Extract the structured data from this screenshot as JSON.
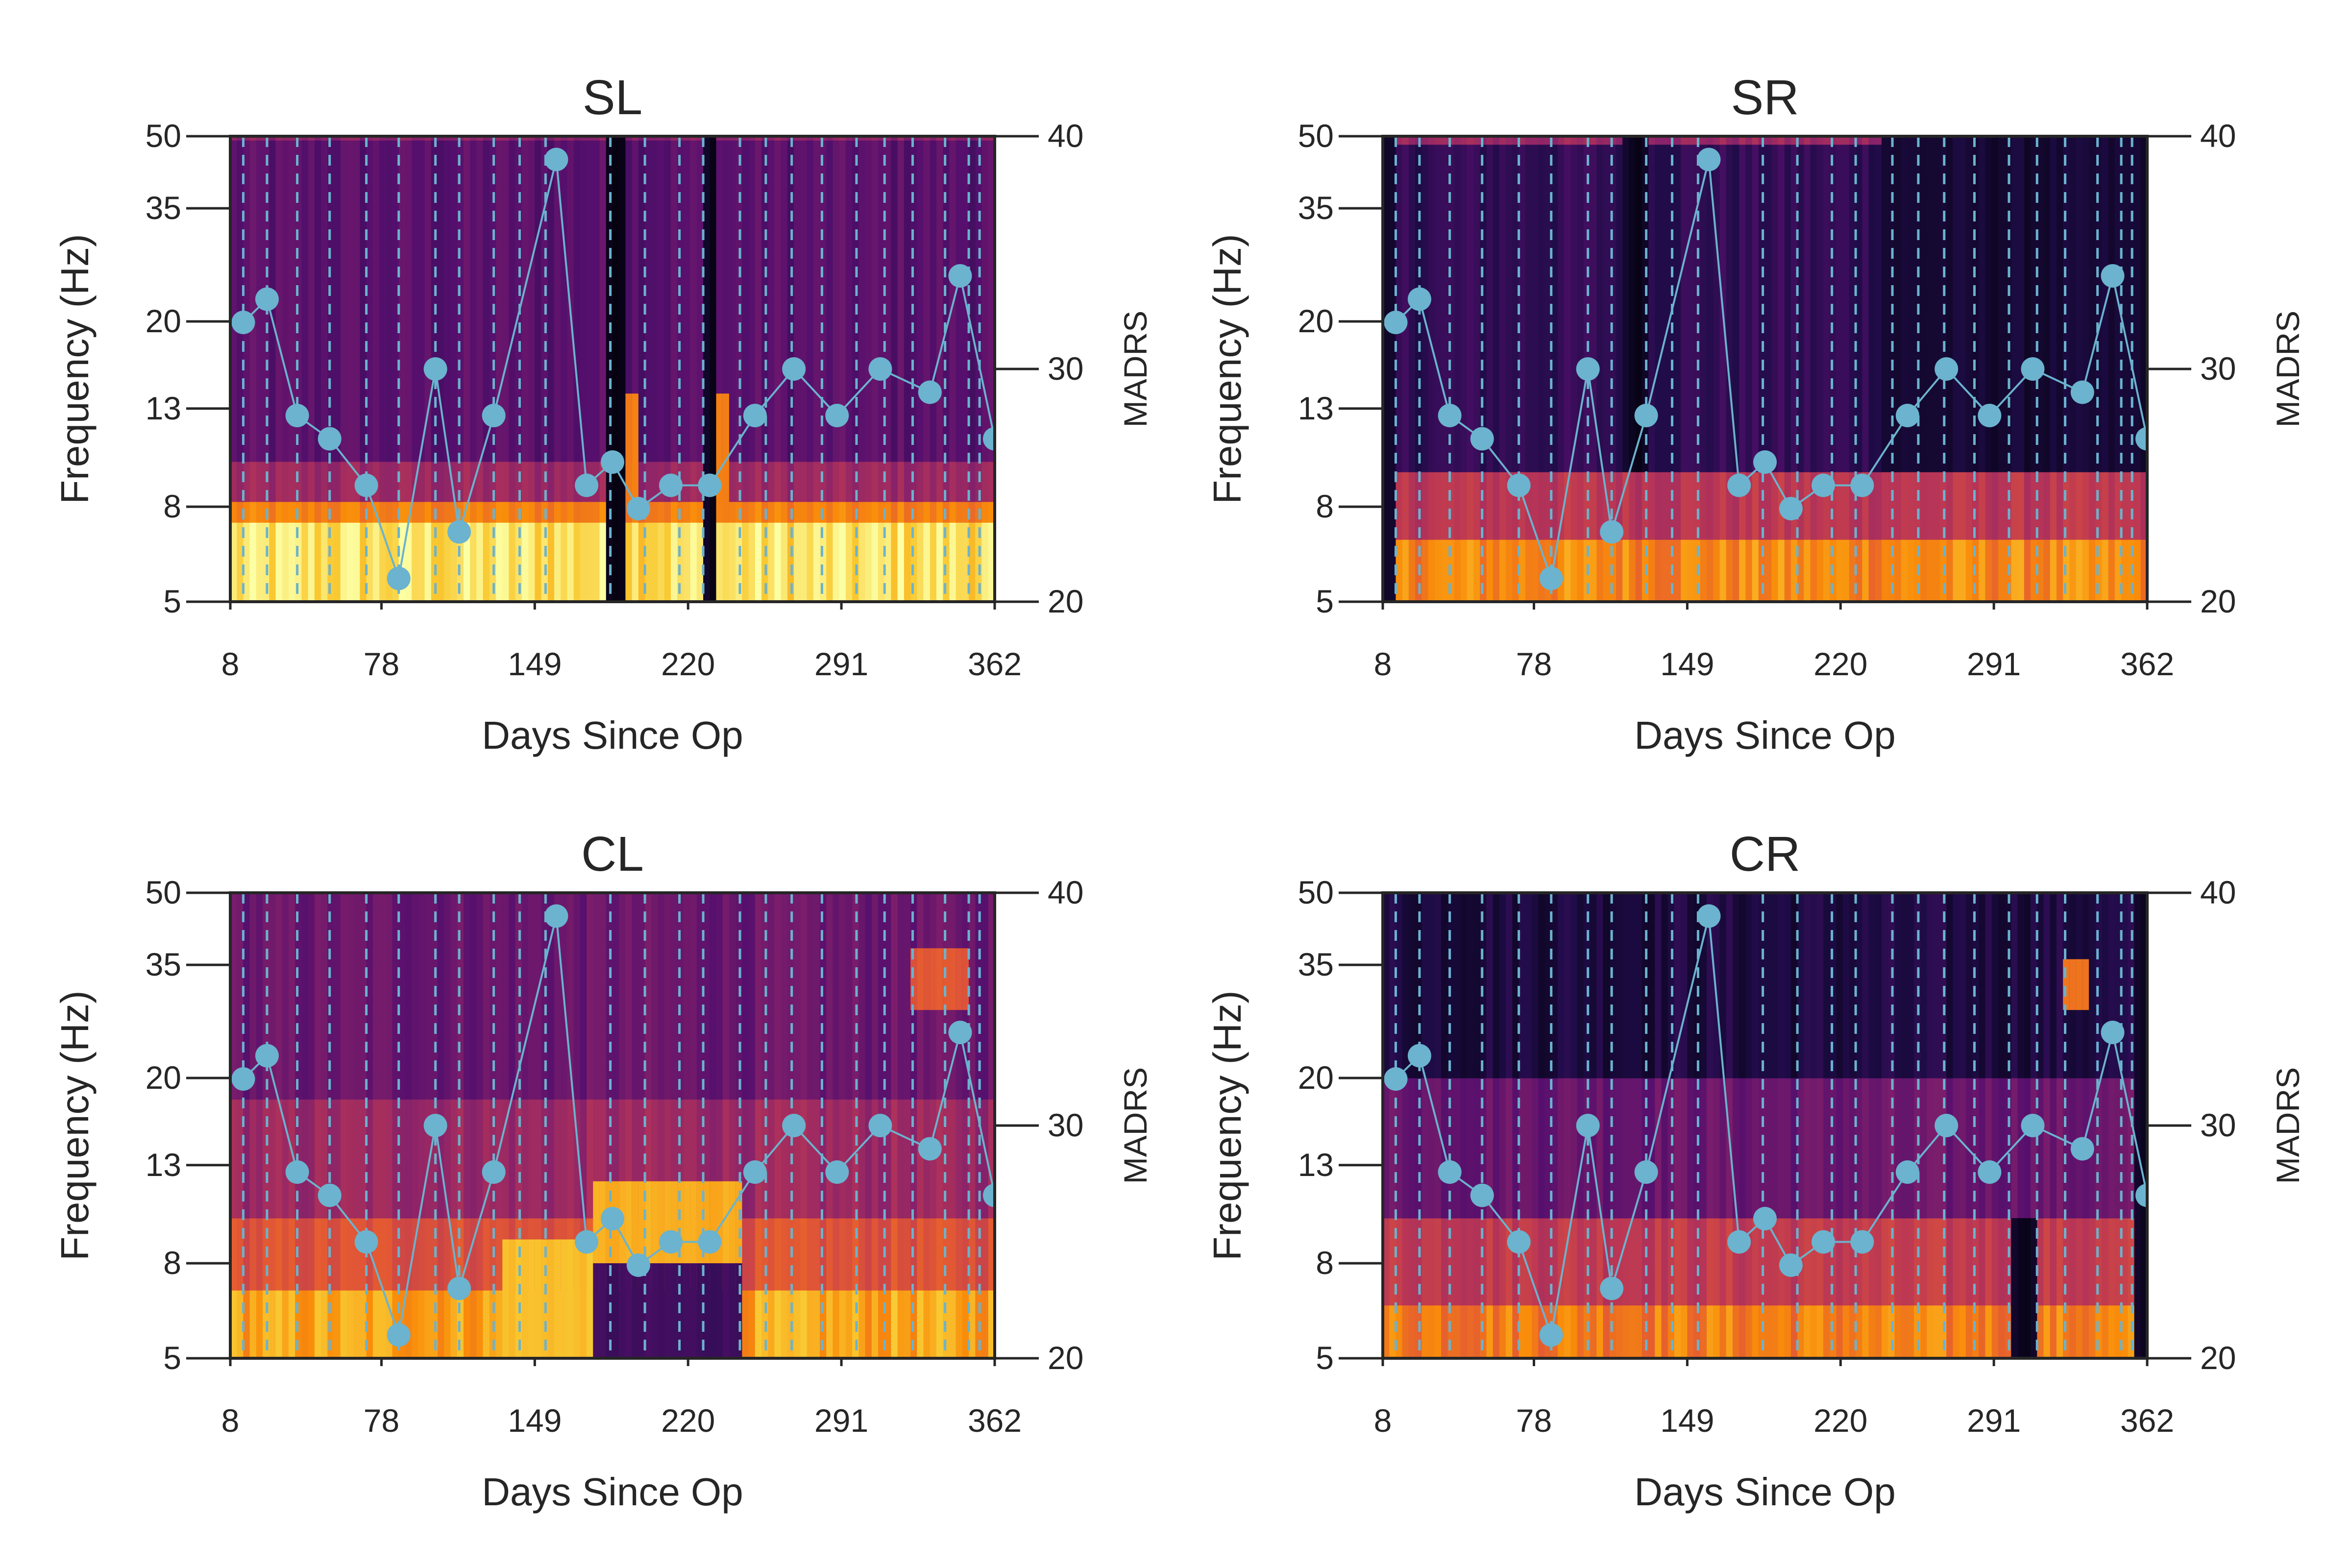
{
  "chart_data": [
    {
      "type": "heatmap",
      "title": "SL",
      "xlabel": "Days Since Op",
      "ylabel": "Frequency (Hz)",
      "y2label": "MADRS",
      "xlim": [
        8,
        362
      ],
      "xticks": [
        8,
        78,
        149,
        220,
        291,
        362
      ],
      "ylim": [
        5,
        50
      ],
      "yscale": "log",
      "yticks": [
        5,
        8,
        13,
        20,
        35,
        50
      ],
      "y2lim": [
        20,
        40
      ],
      "y2ticks": [
        20,
        30,
        40
      ],
      "colormap": "inferno",
      "bands": [
        {
          "freq": [
            5,
            7.4
          ],
          "intensity": 0.93
        },
        {
          "freq": [
            7.4,
            8.2
          ],
          "intensity": 0.72
        },
        {
          "freq": [
            8.2,
            10
          ],
          "intensity": 0.42
        },
        {
          "freq": [
            10,
            49
          ],
          "intensity": 0.26
        },
        {
          "freq": [
            49,
            50
          ],
          "intensity": 0.38
        }
      ],
      "anomalies": [
        {
          "x": [
            183,
            190
          ],
          "freq": [
            5,
            50
          ],
          "intensity": 0.05
        },
        {
          "x": [
            190,
            197
          ],
          "freq": [
            8,
            14
          ],
          "intensity": 0.72
        },
        {
          "x": [
            228,
            234
          ],
          "freq": [
            5,
            50
          ],
          "intensity": 0.06
        },
        {
          "x": [
            234,
            240
          ],
          "freq": [
            8,
            14
          ],
          "intensity": 0.72
        }
      ],
      "session_days": [
        14,
        25,
        39,
        54,
        71,
        86,
        103,
        114,
        130,
        142,
        154,
        184,
        200,
        216,
        227,
        244,
        256,
        268,
        282,
        298,
        311,
        324,
        339,
        350,
        355
      ],
      "series": [
        {
          "name": "",
          "axis": "y2",
          "x": [
            14,
            25,
            39,
            54,
            71,
            86,
            103,
            114,
            130,
            159,
            173,
            185,
            197,
            212,
            230,
            251,
            269,
            289,
            309,
            332,
            346,
            362
          ],
          "y": [
            32,
            33,
            28,
            27,
            25,
            21,
            30,
            23,
            28,
            39,
            25,
            26,
            24,
            25,
            25,
            28,
            30,
            28,
            30,
            29,
            34,
            27
          ]
        }
      ],
      "colors": {
        "madrs": "#6bb3ce"
      }
    },
    {
      "type": "heatmap",
      "title": "SR",
      "xlabel": "Days Since Op",
      "ylabel": "Frequency (Hz)",
      "y2label": "MADRS",
      "xlim": [
        8,
        362
      ],
      "xticks": [
        8,
        78,
        149,
        220,
        291,
        362
      ],
      "ylim": [
        5,
        50
      ],
      "yscale": "log",
      "yticks": [
        5,
        8,
        13,
        20,
        35,
        50
      ],
      "y2lim": [
        20,
        40
      ],
      "y2ticks": [
        20,
        30,
        40
      ],
      "colormap": "inferno",
      "bands": [
        {
          "freq": [
            5,
            6.8
          ],
          "intensity": 0.74
        },
        {
          "freq": [
            6.8,
            9.5
          ],
          "intensity": 0.5
        },
        {
          "freq": [
            9.5,
            48
          ],
          "intensity": 0.17
        },
        {
          "freq": [
            48,
            50
          ],
          "intensity": 0.42
        }
      ],
      "anomalies": [
        {
          "x": [
            8,
            14
          ],
          "freq": [
            5,
            50
          ],
          "intensity": 0.05
        },
        {
          "x": [
            120,
            130
          ],
          "freq": [
            8,
            50
          ],
          "intensity": 0.06
        },
        {
          "x": [
            240,
            362
          ],
          "freq": [
            9.5,
            50
          ],
          "intensity": 0.09
        }
      ],
      "session_days": [
        14,
        25,
        39,
        54,
        71,
        86,
        103,
        114,
        130,
        142,
        154,
        184,
        200,
        216,
        227,
        244,
        256,
        268,
        282,
        298,
        311,
        324,
        339,
        350,
        355
      ],
      "series": [
        {
          "name": "",
          "axis": "y2",
          "x": [
            14,
            25,
            39,
            54,
            71,
            86,
            103,
            114,
            130,
            159,
            173,
            185,
            197,
            212,
            230,
            251,
            269,
            289,
            309,
            332,
            346,
            362
          ],
          "y": [
            32,
            33,
            28,
            27,
            25,
            21,
            30,
            23,
            28,
            39,
            25,
            26,
            24,
            25,
            25,
            28,
            30,
            28,
            30,
            29,
            34,
            27
          ]
        }
      ],
      "colors": {
        "madrs": "#6bb3ce"
      }
    },
    {
      "type": "heatmap",
      "title": "CL",
      "xlabel": "Days Since Op",
      "ylabel": "Frequency (Hz)",
      "y2label": "MADRS",
      "xlim": [
        8,
        362
      ],
      "xticks": [
        8,
        78,
        149,
        220,
        291,
        362
      ],
      "ylim": [
        5,
        50
      ],
      "yscale": "log",
      "yticks": [
        5,
        8,
        13,
        20,
        35,
        50
      ],
      "y2lim": [
        20,
        40
      ],
      "y2ticks": [
        20,
        30,
        40
      ],
      "colormap": "inferno",
      "bands": [
        {
          "freq": [
            5,
            7
          ],
          "intensity": 0.8
        },
        {
          "freq": [
            7,
            10
          ],
          "intensity": 0.6
        },
        {
          "freq": [
            10,
            18
          ],
          "intensity": 0.42
        },
        {
          "freq": [
            18,
            50
          ],
          "intensity": 0.3
        }
      ],
      "anomalies": [
        {
          "x": [
            175,
            245
          ],
          "freq": [
            8,
            12
          ],
          "intensity": 0.82
        },
        {
          "x": [
            175,
            245
          ],
          "freq": [
            5,
            8
          ],
          "intensity": 0.2
        },
        {
          "x": [
            135,
            175
          ],
          "freq": [
            5,
            9
          ],
          "intensity": 0.86
        },
        {
          "x": [
            322,
            350
          ],
          "freq": [
            28,
            38
          ],
          "intensity": 0.62
        }
      ],
      "session_days": [
        14,
        25,
        39,
        54,
        71,
        86,
        103,
        114,
        130,
        142,
        154,
        184,
        200,
        216,
        227,
        244,
        256,
        268,
        282,
        298,
        311,
        324,
        339,
        350,
        355
      ],
      "series": [
        {
          "name": "",
          "axis": "y2",
          "x": [
            14,
            25,
            39,
            54,
            71,
            86,
            103,
            114,
            130,
            159,
            173,
            185,
            197,
            212,
            230,
            251,
            269,
            289,
            309,
            332,
            346,
            362
          ],
          "y": [
            32,
            33,
            28,
            27,
            25,
            21,
            30,
            23,
            28,
            39,
            25,
            26,
            24,
            25,
            25,
            28,
            30,
            28,
            30,
            29,
            34,
            27
          ]
        }
      ],
      "colors": {
        "madrs": "#6bb3ce"
      }
    },
    {
      "type": "heatmap",
      "title": "CR",
      "xlabel": "Days Since Op",
      "ylabel": "Frequency (Hz)",
      "y2label": "MADRS",
      "xlim": [
        8,
        362
      ],
      "xticks": [
        8,
        78,
        149,
        220,
        291,
        362
      ],
      "ylim": [
        5,
        50
      ],
      "yscale": "log",
      "yticks": [
        5,
        8,
        13,
        20,
        35,
        50
      ],
      "y2lim": [
        20,
        40
      ],
      "y2ticks": [
        20,
        30,
        40
      ],
      "colormap": "inferno",
      "bands": [
        {
          "freq": [
            5,
            6.5
          ],
          "intensity": 0.72
        },
        {
          "freq": [
            6.5,
            10
          ],
          "intensity": 0.52
        },
        {
          "freq": [
            10,
            20
          ],
          "intensity": 0.3
        },
        {
          "freq": [
            20,
            50
          ],
          "intensity": 0.12
        }
      ],
      "anomalies": [
        {
          "x": [
            322,
            334
          ],
          "freq": [
            28,
            36
          ],
          "intensity": 0.7
        },
        {
          "x": [
            300,
            312
          ],
          "freq": [
            5,
            10
          ],
          "intensity": 0.06
        },
        {
          "x": [
            356,
            362
          ],
          "freq": [
            5,
            50
          ],
          "intensity": 0.06
        }
      ],
      "session_days": [
        14,
        25,
        39,
        54,
        71,
        86,
        103,
        114,
        130,
        142,
        154,
        184,
        200,
        216,
        227,
        244,
        256,
        268,
        282,
        298,
        311,
        324,
        339,
        350,
        355
      ],
      "series": [
        {
          "name": "",
          "axis": "y2",
          "x": [
            14,
            25,
            39,
            54,
            71,
            86,
            103,
            114,
            130,
            159,
            173,
            185,
            197,
            212,
            230,
            251,
            269,
            289,
            309,
            332,
            346,
            362
          ],
          "y": [
            32,
            33,
            28,
            27,
            25,
            21,
            30,
            23,
            28,
            39,
            25,
            26,
            24,
            25,
            25,
            28,
            30,
            28,
            30,
            29,
            34,
            27
          ]
        }
      ],
      "colors": {
        "madrs": "#6bb3ce"
      }
    }
  ]
}
